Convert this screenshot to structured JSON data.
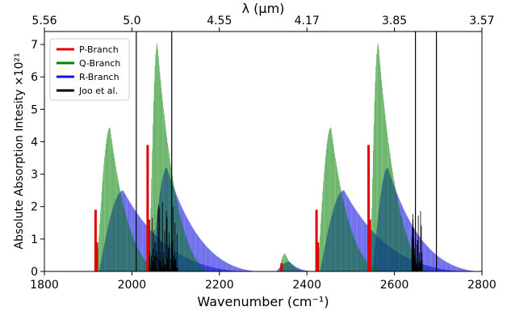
{
  "chart_data": {
    "type": "area",
    "xlabel": "Wavenumber (cm⁻¹)",
    "ylabel": "Absolute Absorption Intesity ×10²¹",
    "top_xlabel": "λ (μm)",
    "xlim": [
      1800,
      2800
    ],
    "ylim": [
      0,
      7.4
    ],
    "x_ticks": [
      1800,
      2000,
      2200,
      2400,
      2600,
      2800
    ],
    "x_tick_labels": [
      "1800",
      "2000",
      "2200",
      "2400",
      "2600",
      "2800"
    ],
    "y_ticks": [
      0,
      1,
      2,
      3,
      4,
      5,
      6,
      7
    ],
    "y_tick_labels": [
      "0",
      "1",
      "2",
      "3",
      "4",
      "5",
      "6",
      "7"
    ],
    "top_ticks": [
      {
        "wavenumber": 1800,
        "label": "5.56"
      },
      {
        "wavenumber": 2000,
        "label": "5.0"
      },
      {
        "wavenumber": 2200,
        "label": "4.55"
      },
      {
        "wavenumber": 2400,
        "label": "4.17"
      },
      {
        "wavenumber": 2600,
        "label": "3.85"
      },
      {
        "wavenumber": 2800,
        "label": "3.57"
      }
    ],
    "legend_position": "top-left",
    "series": [
      {
        "name": "P-Branch",
        "color": "#e00000",
        "lines": [
          {
            "x": 1917,
            "y": 1.9
          },
          {
            "x": 1920,
            "y": 0.9
          },
          {
            "x": 2036,
            "y": 3.9
          },
          {
            "x": 2039,
            "y": 1.6
          },
          {
            "x": 2342,
            "y": 0.25
          },
          {
            "x": 2422,
            "y": 1.9
          },
          {
            "x": 2425,
            "y": 0.9
          },
          {
            "x": 2541,
            "y": 3.9
          },
          {
            "x": 2544,
            "y": 1.6
          }
        ]
      },
      {
        "name": "Q-Branch",
        "color": "#008000",
        "bands": [
          {
            "x_start": 1920,
            "x_peak": 1950,
            "x_end": 2070,
            "peak": 4.45
          },
          {
            "x_start": 2040,
            "x_peak": 2058,
            "x_end": 2180,
            "peak": 7.05
          },
          {
            "x_start": 2336,
            "x_peak": 2350,
            "x_end": 2400,
            "peak": 0.55
          },
          {
            "x_start": 2425,
            "x_peak": 2455,
            "x_end": 2575,
            "peak": 4.45
          },
          {
            "x_start": 2545,
            "x_peak": 2563,
            "x_end": 2685,
            "peak": 7.05
          }
        ]
      },
      {
        "name": "R-Branch",
        "color": "#1010e0",
        "bands": [
          {
            "x_start": 1925,
            "x_peak": 1980,
            "x_end": 2260,
            "peak": 2.5
          },
          {
            "x_start": 2045,
            "x_peak": 2080,
            "x_end": 2290,
            "peak": 3.2
          },
          {
            "x_start": 2330,
            "x_peak": 2360,
            "x_end": 2420,
            "peak": 0.3
          },
          {
            "x_start": 2430,
            "x_peak": 2485,
            "x_end": 2765,
            "peak": 2.5
          },
          {
            "x_start": 2550,
            "x_peak": 2585,
            "x_end": 2795,
            "peak": 3.2
          }
        ]
      },
      {
        "name": "Joo et al.",
        "color": "#000000",
        "vertical_lines": [
          2010,
          2091,
          2648,
          2696
        ],
        "sticks": [
          {
            "x_start": 2040,
            "x_end": 2105,
            "max": 2.2
          },
          {
            "x_start": 2640,
            "x_end": 2665,
            "max": 1.9
          }
        ]
      }
    ]
  }
}
